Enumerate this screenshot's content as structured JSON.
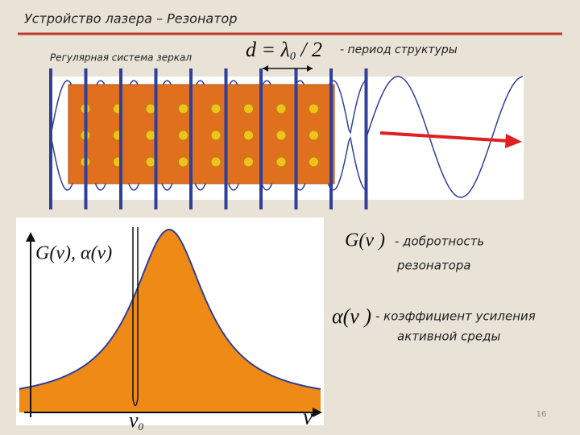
{
  "header": {
    "title": "Устройство лазера – Резонатор"
  },
  "diagram": {
    "subtitle": "Регулярная система зеркал",
    "formula": {
      "main": "d = λ",
      "sub": "0",
      "rest": " / 2"
    },
    "formula_note": "- период структуры"
  },
  "plot": {
    "y_label": "G(ν), α(ν)",
    "nu0": {
      "main": "ν",
      "sub": "0"
    },
    "x_label": "ν"
  },
  "legend": {
    "g_symbol": "G(ν )",
    "g_text1": "-   добротность",
    "g_text2": "резонатора",
    "a_symbol": "α(ν )",
    "a_text1": "- коэффициент усиления",
    "a_text2": "активной среды"
  },
  "footer": {
    "page": "16"
  }
}
